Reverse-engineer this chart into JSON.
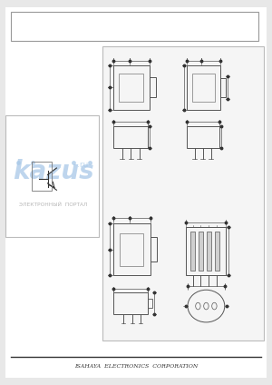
{
  "bg_color": "#e8e8e8",
  "page_bg": "#ffffff",
  "title_text": "ISAHAYA  ELECTRONICS  CORPORATION",
  "watermark_text": "kazus",
  "watermark_subtext": "ЭЛЕКТРОННЫЙ  ПОРТАЛ",
  "watermark_color": "#a8c8e8",
  "line_color": "#555555",
  "dim_color": "#555555"
}
